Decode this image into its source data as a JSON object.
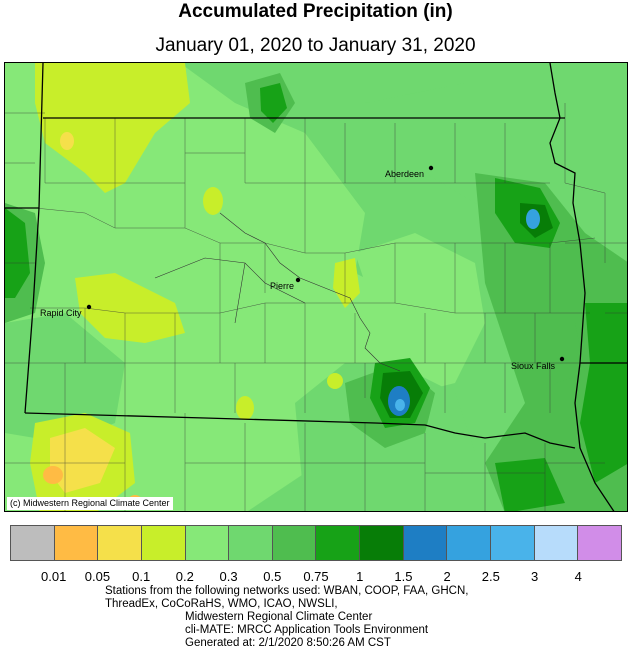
{
  "header": {
    "title": "Accumulated Precipitation (in)",
    "subtitle": "January 01, 2020 to January 31, 2020"
  },
  "map": {
    "credit": "(c) Midwestern Regional Climate Center",
    "cities": [
      {
        "name": "Aberdeen"
      },
      {
        "name": "Pierre"
      },
      {
        "name": "Rapid City"
      },
      {
        "name": "Sioux Falls"
      }
    ]
  },
  "legend": {
    "colors": [
      "#bdbdbd",
      "#ffbb44",
      "#f5e04a",
      "#c8ee2a",
      "#86e878",
      "#6fd86f",
      "#4fbd4f",
      "#17a217",
      "#077d07",
      "#1e7ec4",
      "#35a2df",
      "#49b3ea",
      "#b7dcfb",
      "#d18de8"
    ],
    "labels": [
      "0.01",
      "0.05",
      "0.1",
      "0.2",
      "0.3",
      "0.5",
      "0.75",
      "1",
      "1.5",
      "2",
      "2.5",
      "3",
      "4"
    ]
  },
  "footer": {
    "lines": [
      "Stations from the following networks used: WBAN, COOP, FAA, GHCN,",
      "ThreadEx, CoCoRaHS, WMO, ICAO, NWSLI,",
      "Midwestern Regional Climate Center",
      "cli-MATE: MRCC Application Tools Environment",
      "Generated at: 2/1/2020 8:50:26 AM CST"
    ]
  }
}
